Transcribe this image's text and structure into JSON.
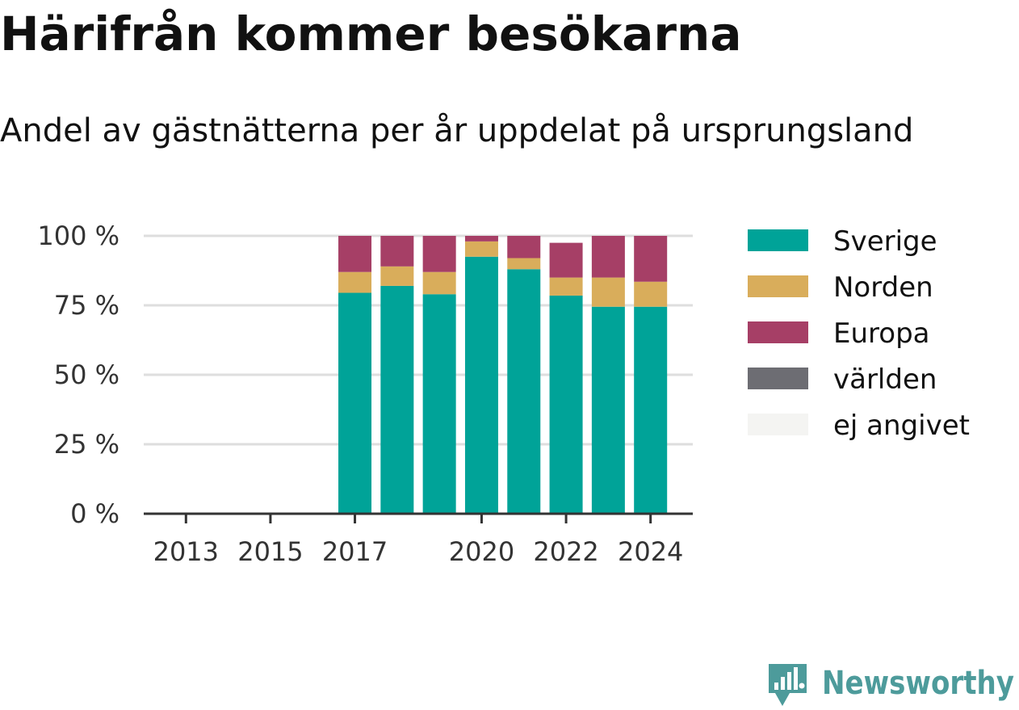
{
  "header": {
    "title": "Härifrån kommer besökarna",
    "subtitle": "Andel av gästnätterna per år uppdelat på ursprungsland"
  },
  "brand": {
    "name": "Newsworthy",
    "icon": "newsworthy-logo-icon",
    "color": "#4d9b9b"
  },
  "chart_data": {
    "type": "bar",
    "stacked": true,
    "x": [
      2013,
      2014,
      2015,
      2016,
      2017,
      2018,
      2019,
      2020,
      2021,
      2022,
      2023,
      2024
    ],
    "x_tick_labels": [
      "2013",
      "2015",
      "2017",
      "2020",
      "2022",
      "2024"
    ],
    "x_tick_values": [
      2013,
      2015,
      2017,
      2020,
      2022,
      2024
    ],
    "y_tick_labels": [
      "0 %",
      "25 %",
      "50 %",
      "75 %",
      "100 %"
    ],
    "y_tick_values": [
      0,
      25,
      50,
      75,
      100
    ],
    "ylim": [
      0,
      100
    ],
    "grid": true,
    "legend_position": "right",
    "series": [
      {
        "name": "Sverige",
        "color": "#00a398",
        "values": [
          null,
          null,
          null,
          null,
          79.5,
          82,
          79,
          92.5,
          88,
          78.5,
          74.5,
          74.5
        ]
      },
      {
        "name": "Norden",
        "color": "#d9ad5b",
        "values": [
          null,
          null,
          null,
          null,
          7.5,
          7,
          8,
          5.5,
          4,
          6.5,
          10.5,
          9
        ]
      },
      {
        "name": "Europa",
        "color": "#a63f66",
        "values": [
          null,
          null,
          null,
          null,
          13,
          11,
          13,
          2,
          8,
          12.5,
          15,
          16.5
        ]
      },
      {
        "name": "världen",
        "color": "#6d6d73",
        "values": [
          null,
          null,
          null,
          null,
          0,
          0,
          0,
          0,
          0,
          0,
          0,
          0
        ]
      },
      {
        "name": "ej angivet",
        "color": "#f4f4f2",
        "values": [
          null,
          null,
          null,
          null,
          0,
          0,
          0,
          0,
          0,
          0,
          0,
          0
        ]
      }
    ]
  }
}
